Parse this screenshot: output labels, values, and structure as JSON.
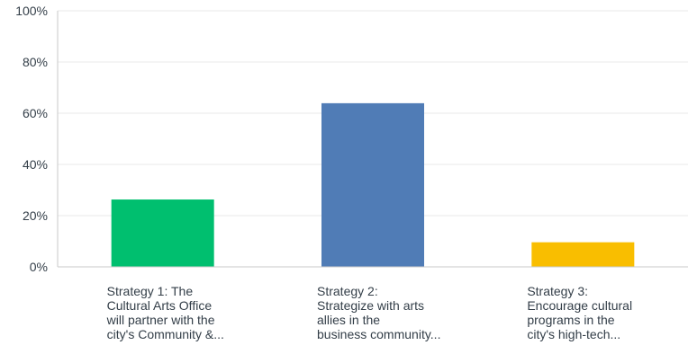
{
  "chart_data": {
    "type": "bar",
    "title": "",
    "xlabel": "",
    "ylabel": "",
    "ylim": [
      0,
      100
    ],
    "y_ticks": [
      "0%",
      "20%",
      "40%",
      "60%",
      "80%",
      "100%"
    ],
    "grid": true,
    "categories": [
      "Strategy 1: The\nCultural Arts Office\nwill partner with the\ncity's Community &...",
      "Strategy 2:\nStrategize with arts\nallies in the\nbusiness community...",
      "Strategy 3:\nEncourage cultural\nprograms in the\ncity's high-tech..."
    ],
    "values": [
      26.3,
      63.9,
      9.6
    ],
    "colors": [
      "#00bf6f",
      "#507cb6",
      "#f9be00"
    ],
    "gridline_color": "#e8e8e8",
    "axis_color": "#c9c9c9"
  }
}
